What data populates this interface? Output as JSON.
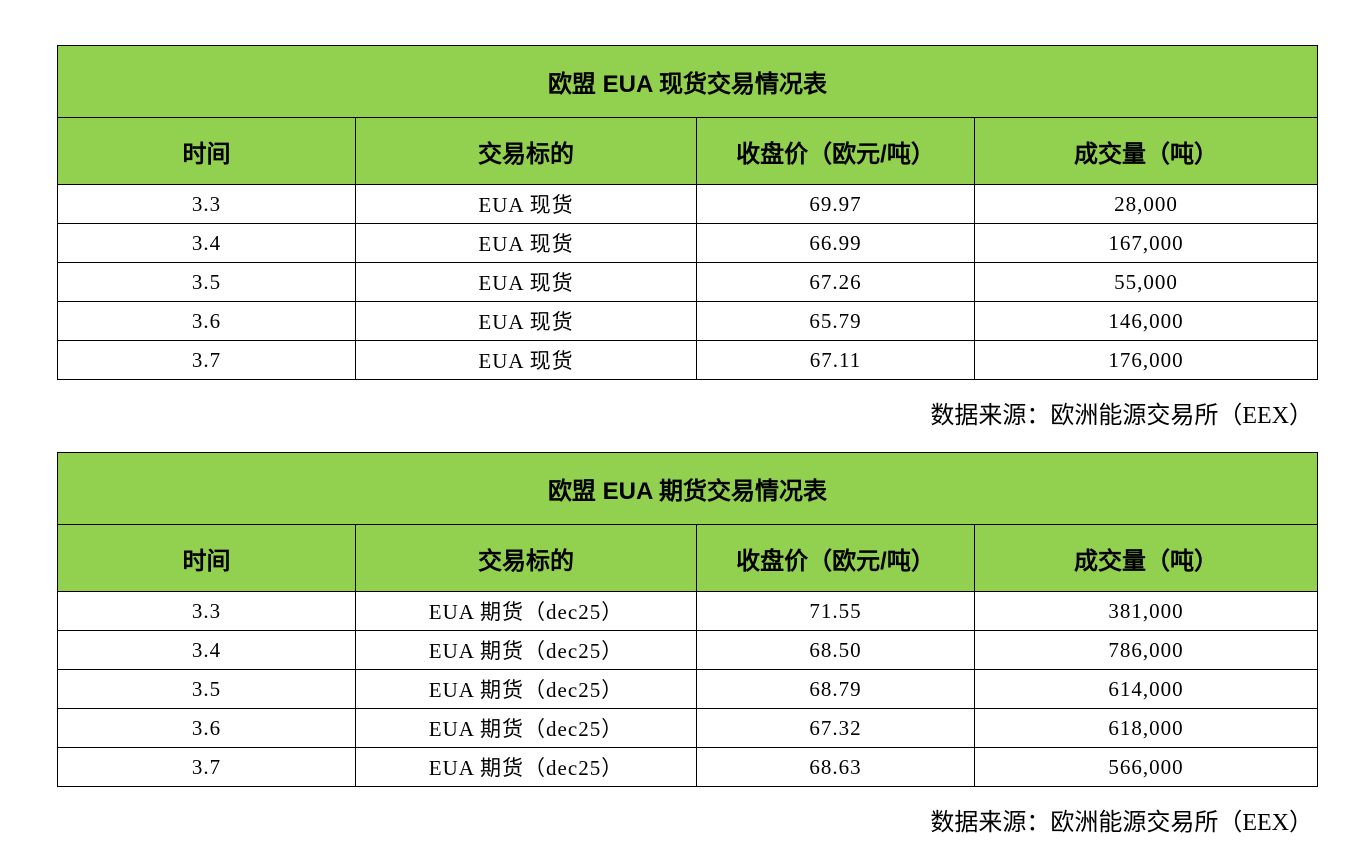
{
  "colors": {
    "table_header_green": "#92D050",
    "border": "#000000",
    "text": "#000000",
    "page_background": "#FFFFFF"
  },
  "tables": [
    {
      "title": "欧盟 EUA 现货交易情况表",
      "columns": [
        "时间",
        "交易标的",
        "收盘价（欧元/吨）",
        "成交量（吨）"
      ],
      "rows": [
        [
          "3.3",
          "EUA 现货",
          "69.97",
          "28,000"
        ],
        [
          "3.4",
          "EUA 现货",
          "66.99",
          "167,000"
        ],
        [
          "3.5",
          "EUA 现货",
          "67.26",
          "55,000"
        ],
        [
          "3.6",
          "EUA 现货",
          "65.79",
          "146,000"
        ],
        [
          "3.7",
          "EUA 现货",
          "67.11",
          "176,000"
        ]
      ],
      "source": "数据来源：欧洲能源交易所（EEX）"
    },
    {
      "title": "欧盟 EUA 期货交易情况表",
      "columns": [
        "时间",
        "交易标的",
        "收盘价（欧元/吨）",
        "成交量（吨）"
      ],
      "rows": [
        [
          "3.3",
          "EUA 期货（dec25）",
          "71.55",
          "381,000"
        ],
        [
          "3.4",
          "EUA 期货（dec25）",
          "68.50",
          "786,000"
        ],
        [
          "3.5",
          "EUA 期货（dec25）",
          "68.79",
          "614,000"
        ],
        [
          "3.6",
          "EUA 期货（dec25）",
          "67.32",
          "618,000"
        ],
        [
          "3.7",
          "EUA 期货（dec25）",
          "68.63",
          "566,000"
        ]
      ],
      "source": "数据来源：欧洲能源交易所（EEX）"
    }
  ]
}
